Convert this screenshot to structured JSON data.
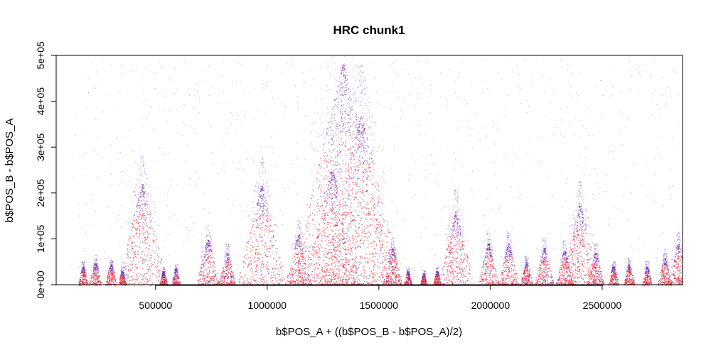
{
  "chart_data": {
    "type": "scatter",
    "title": "HRC chunk1",
    "xlabel": "b$POS_A + ((b$POS_B - b$POS_A)/2)",
    "ylabel": "b$POS_B - b$POS_A",
    "xlim": [
      55000,
      2860000
    ],
    "ylim": [
      0,
      500000
    ],
    "x_ticks": [
      500000,
      1000000,
      1500000,
      2000000,
      2500000
    ],
    "x_tick_labels": [
      "500000",
      "1000000",
      "1500000",
      "2000000",
      "2500000"
    ],
    "y_ticks": [
      0,
      100000,
      200000,
      300000,
      400000,
      500000
    ],
    "y_tick_labels": [
      "0e+00",
      "1e+05",
      "2e+05",
      "3e+05",
      "4e+05",
      "5e+05"
    ],
    "grid": false,
    "colors": {
      "high": "#ff0000",
      "mid": "#7b1fa2",
      "low": "#5a5adc"
    },
    "peaks": [
      {
        "center": 175000,
        "height": 40000
      },
      {
        "center": 230000,
        "height": 50000
      },
      {
        "center": 300000,
        "height": 45000
      },
      {
        "center": 350000,
        "height": 30000
      },
      {
        "center": 440000,
        "height": 220000
      },
      {
        "center": 535000,
        "height": 30000
      },
      {
        "center": 590000,
        "height": 35000
      },
      {
        "center": 735000,
        "height": 100000
      },
      {
        "center": 820000,
        "height": 70000
      },
      {
        "center": 975000,
        "height": 215000
      },
      {
        "center": 1140000,
        "height": 110000
      },
      {
        "center": 1290000,
        "height": 250000
      },
      {
        "center": 1340000,
        "height": 480000
      },
      {
        "center": 1420000,
        "height": 370000
      },
      {
        "center": 1560000,
        "height": 80000
      },
      {
        "center": 1630000,
        "height": 30000
      },
      {
        "center": 1700000,
        "height": 25000
      },
      {
        "center": 1760000,
        "height": 30000
      },
      {
        "center": 1845000,
        "height": 160000
      },
      {
        "center": 1990000,
        "height": 90000
      },
      {
        "center": 2080000,
        "height": 90000
      },
      {
        "center": 2160000,
        "height": 50000
      },
      {
        "center": 2240000,
        "height": 80000
      },
      {
        "center": 2330000,
        "height": 75000
      },
      {
        "center": 2400000,
        "height": 175000
      },
      {
        "center": 2470000,
        "height": 70000
      },
      {
        "center": 2550000,
        "height": 40000
      },
      {
        "center": 2620000,
        "height": 45000
      },
      {
        "center": 2700000,
        "height": 40000
      },
      {
        "center": 2780000,
        "height": 60000
      },
      {
        "center": 2840000,
        "height": 90000
      }
    ]
  }
}
